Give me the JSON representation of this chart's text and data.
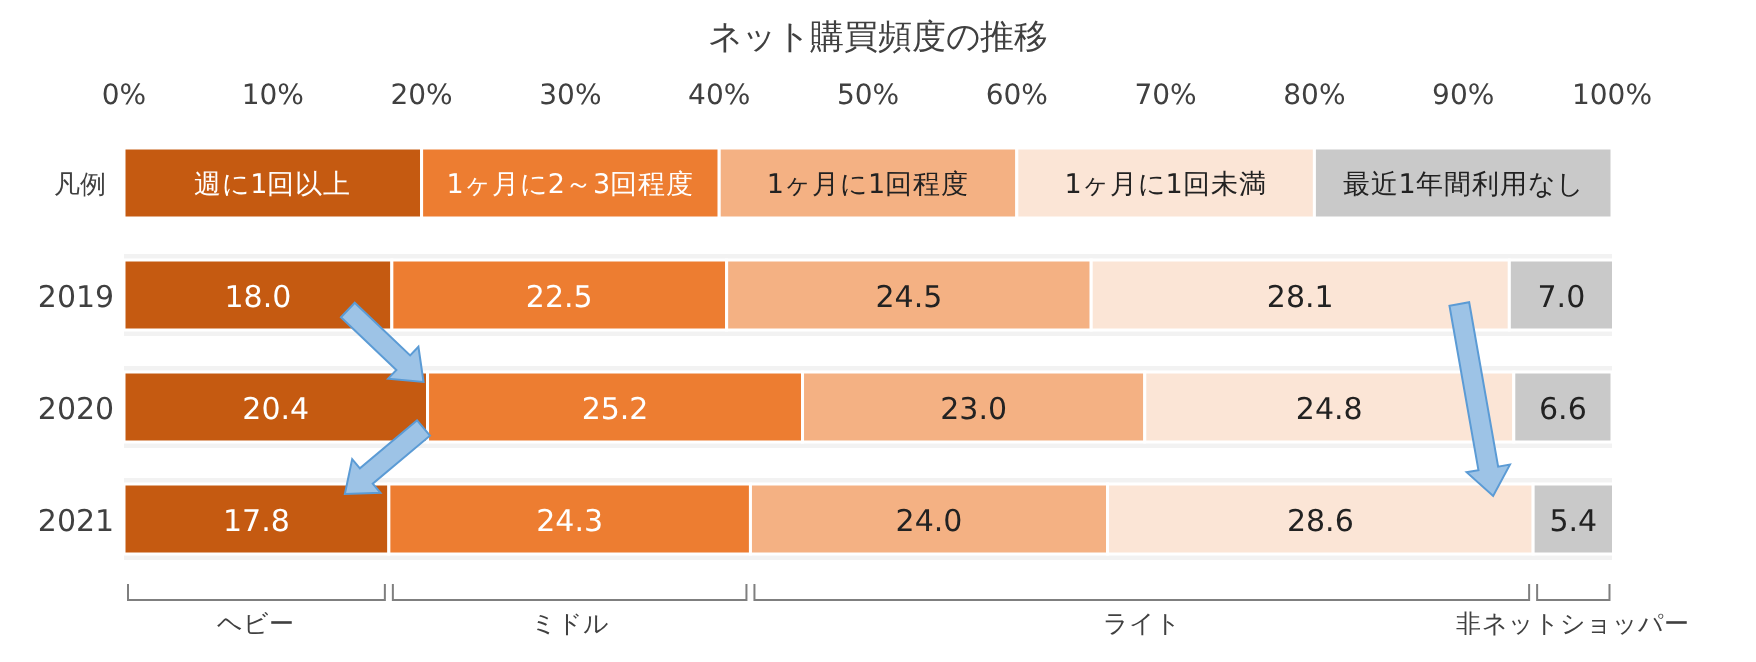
{
  "chart_data": {
    "type": "bar",
    "orientation": "horizontal",
    "stacked": true,
    "title": "ネット購買頻度の推移",
    "legend_title": "凡例",
    "legend": "top",
    "categories": [
      "2019",
      "2020",
      "2021"
    ],
    "series": [
      {
        "name": "週に1回以上",
        "color": "#c55a11",
        "values": [
          18.0,
          20.4,
          17.8
        ],
        "value_labels": [
          "18.0",
          "20.4",
          "17.8"
        ]
      },
      {
        "name": "1ヶ月に2～3回程度",
        "color": "#ed7d31",
        "values": [
          22.5,
          25.2,
          24.3
        ],
        "value_labels": [
          "22.5",
          "25.2",
          "24.3"
        ]
      },
      {
        "name": "1ヶ月に1回程度",
        "color": "#f4b183",
        "values": [
          24.5,
          23.0,
          24.0
        ],
        "value_labels": [
          "24.5",
          "23.0",
          "24.0"
        ]
      },
      {
        "name": "1ヶ月に1回未満",
        "color": "#fbe5d6",
        "values": [
          28.1,
          24.8,
          28.6
        ],
        "value_labels": [
          "28.1",
          "24.8",
          "28.6"
        ]
      },
      {
        "name": "最近1年間利用なし",
        "color": "#c9c9c9",
        "values": [
          7.0,
          6.6,
          5.4
        ],
        "value_labels": [
          "7.0",
          "6.6",
          "5.4"
        ]
      }
    ],
    "xlim": [
      0,
      100
    ],
    "xticks": [
      {
        "value": 0,
        "label": "0%"
      },
      {
        "value": 10,
        "label": "10%"
      },
      {
        "value": 20,
        "label": "20%"
      },
      {
        "value": 30,
        "label": "30%"
      },
      {
        "value": 40,
        "label": "40%"
      },
      {
        "value": 50,
        "label": "50%"
      },
      {
        "value": 60,
        "label": "60%"
      },
      {
        "value": 70,
        "label": "70%"
      },
      {
        "value": 80,
        "label": "80%"
      },
      {
        "value": 90,
        "label": "90%"
      },
      {
        "value": 100,
        "label": "100%"
      }
    ],
    "grid": false,
    "annotations": [
      "ヘビー",
      "ミドル",
      "ライト",
      "非ネットショッパー"
    ]
  }
}
